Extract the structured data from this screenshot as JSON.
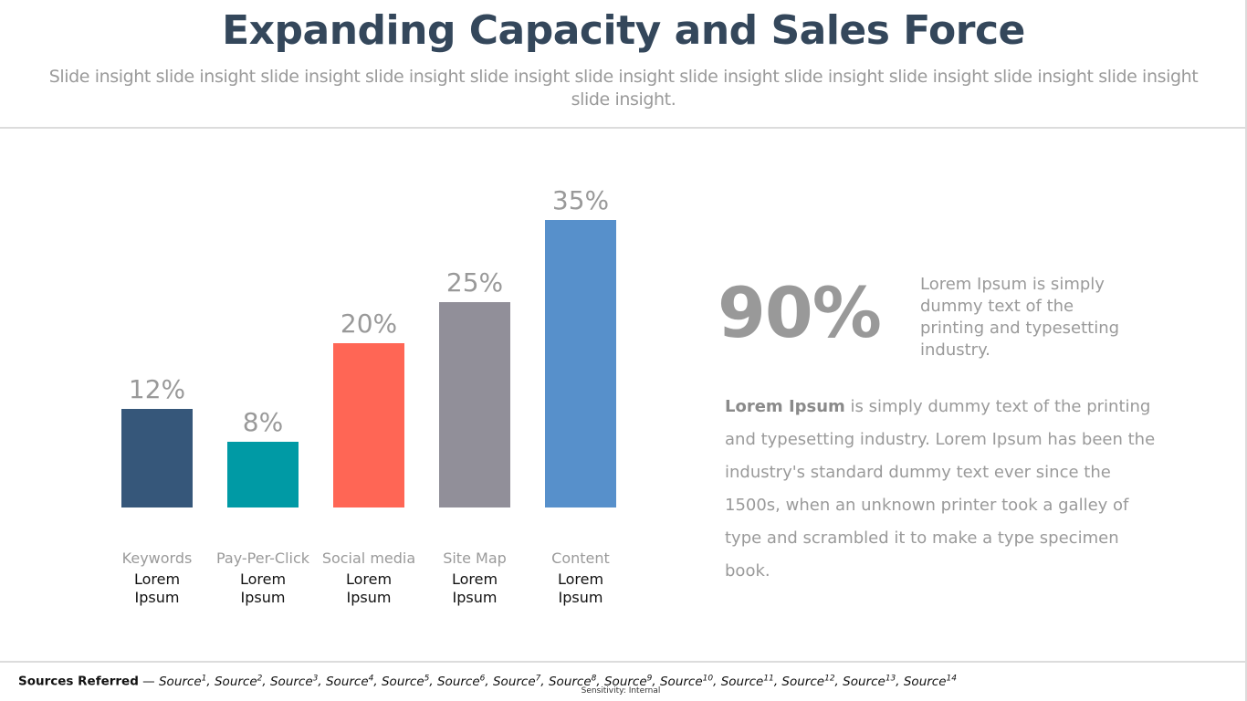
{
  "header": {
    "title": "Expanding Capacity and Sales Force",
    "subtitle": "Slide insight slide insight slide insight slide insight slide insight slide insight slide insight slide insight slide insight slide insight slide insight slide insight."
  },
  "chart_data": {
    "type": "bar",
    "categories": [
      "Keywords",
      "Pay-Per-Click",
      "Social media",
      "Site Map",
      "Content"
    ],
    "sublabels": [
      "Lorem Ipsum",
      "Lorem Ipsum",
      "Lorem Ipsum",
      "Lorem Ipsum",
      "Lorem Ipsum"
    ],
    "values": [
      12,
      8,
      20,
      25,
      35
    ],
    "value_labels": [
      "12%",
      "8%",
      "20%",
      "25%",
      "35%"
    ],
    "colors": [
      "#36577a",
      "#009aa5",
      "#ff6655",
      "#918f99",
      "#5790cb"
    ],
    "label_color": "#999999",
    "ylim": [
      0,
      35
    ],
    "grid": false,
    "legend": "none"
  },
  "highlight": {
    "stat": "90%",
    "note": "Lorem Ipsum is simply dummy text of the printing and typesetting industry."
  },
  "paragraph": {
    "bold": "Lorem Ipsum",
    "text": " is simply dummy text of the printing and typesetting industry. Lorem Ipsum has been the industry's standard dummy text ever since the 1500s, when an unknown printer took a galley of type and scrambled it to make a type specimen book."
  },
  "footer": {
    "sources_label": "Sources Referred",
    "sources_sep": " — ",
    "sources": [
      "Source",
      "Source",
      "Source",
      "Source",
      "Source",
      "Source",
      "Source",
      "Source",
      "Source",
      "Source",
      "Source",
      "Source",
      "Source",
      "Source"
    ],
    "sources_sup": [
      "1",
      "2",
      "3",
      "4",
      "5",
      "6",
      "7",
      "8",
      "9",
      "10",
      "11",
      "12",
      "13",
      "14"
    ],
    "sensitivity": "Sensitivity: Internal"
  }
}
